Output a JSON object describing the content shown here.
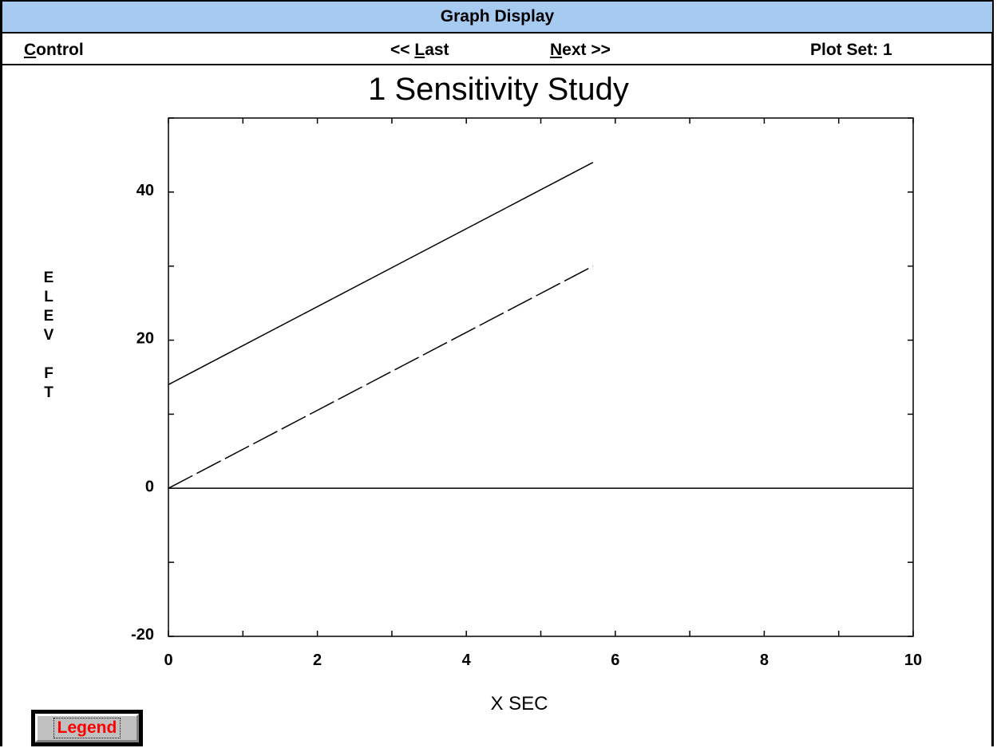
{
  "window": {
    "title": "Graph Display"
  },
  "menu": {
    "control": "Control",
    "last": "<< Last",
    "next": "Next >>",
    "plot_set_label": "Plot Set:",
    "plot_set_value": "1"
  },
  "legend_button": {
    "label": "Legend"
  },
  "colors": {
    "titlebar": "#a6caf0",
    "legend_text": "#ff0000"
  },
  "chart_data": {
    "type": "line",
    "title": "1 Sensitivity Study",
    "xlabel": "X SEC",
    "ylabel": "E L E V   F T",
    "ylabel_letters": [
      "E",
      "L",
      "E",
      "V",
      "",
      "F",
      "T"
    ],
    "xlim": [
      0,
      10
    ],
    "ylim": [
      -20,
      50
    ],
    "xticks": [
      0,
      2,
      4,
      6,
      8,
      10
    ],
    "yticks": [
      -20,
      0,
      20,
      40
    ],
    "grid": false,
    "series": [
      {
        "style": "solid",
        "x": [
          0,
          5.7
        ],
        "y": [
          14,
          44
        ]
      },
      {
        "style": "dashed",
        "x": [
          0,
          5.7
        ],
        "y": [
          0,
          30
        ]
      }
    ],
    "reference_lines": [
      {
        "axis": "y",
        "value": 0
      }
    ]
  }
}
